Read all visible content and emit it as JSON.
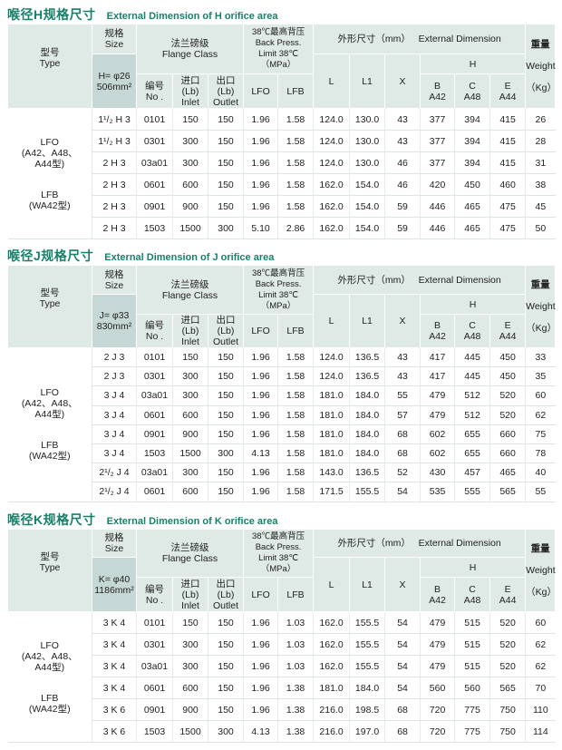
{
  "header_labels": {
    "type_cn": "型号",
    "type_en": "Type",
    "size_cn": "规格",
    "size_en": "Size",
    "flange_cn": "法兰磅级",
    "flange_en": "Flange  Class",
    "bp_cn": "38℃最高背压",
    "bp_en1": "Back Press.",
    "bp_en2": "Limit 38℃",
    "bp_unit": "（MPa）",
    "ext_dim": "外形尺寸（mm）   External Dimension",
    "weight_cn": "重量",
    "weight_en": "Weight",
    "weight_unit": "（Kg）",
    "no_cn": "编号",
    "no_en": "No .",
    "inlet_cn": "进口(Lb)",
    "inlet_en": "Inlet",
    "outlet_cn": "出口(Lb)",
    "outlet_en": "Outlet",
    "lfo": "LFO",
    "lfb": "LFB",
    "L": "L",
    "L1": "L1",
    "X": "X",
    "H": "H",
    "B": "B",
    "B2": "A42",
    "C": "C",
    "C2": "A48",
    "E": "E",
    "E2": "A44"
  },
  "type_text": {
    "lfo": "LFO",
    "lfo_sub": "(A42、A48、",
    "lfo_sub2": "A44型)",
    "lfb": "LFB",
    "lfb_sub": "(WA42型)"
  },
  "colors": {
    "title": "#17806a",
    "header_bg": "#dfe9e6",
    "size_bg": "#c6d8d5"
  },
  "sections": [
    {
      "title_cn": "喉径H规格尺寸",
      "title_en": "External Dimension of H orifice area",
      "size_value1": "H= φ26",
      "size_value2": "506mm²",
      "rows": [
        [
          "1¹/₂ H 3",
          "0101",
          "150",
          "150",
          "1.96",
          "1.58",
          "124.0",
          "130.0",
          "43",
          "377",
          "394",
          "415",
          "26"
        ],
        [
          "1¹/₂ H 3",
          "0301",
          "300",
          "150",
          "1.96",
          "1.58",
          "124.0",
          "130.0",
          "43",
          "377",
          "394",
          "415",
          "28"
        ],
        [
          "2 H 3",
          "03a01",
          "300",
          "150",
          "1.96",
          "1.58",
          "124.0",
          "130.0",
          "46",
          "377",
          "394",
          "415",
          "31"
        ],
        [
          "2 H 3",
          "0601",
          "600",
          "150",
          "1.96",
          "1.58",
          "162.0",
          "154.0",
          "46",
          "420",
          "450",
          "460",
          "38"
        ],
        [
          "2 H 3",
          "0901",
          "900",
          "150",
          "1.96",
          "1.58",
          "162.0",
          "154.0",
          "59",
          "446",
          "465",
          "475",
          "45"
        ],
        [
          "2 H 3",
          "1503",
          "1500",
          "300",
          "5.10",
          "2.86",
          "162.0",
          "154.0",
          "59",
          "446",
          "465",
          "475",
          "50"
        ]
      ]
    },
    {
      "title_cn": "喉径J规格尺寸",
      "title_en": "External Dimension of J orifice area",
      "size_value1": "J= φ33",
      "size_value2": "830mm²",
      "rows": [
        [
          "2 J 3",
          "0101",
          "150",
          "150",
          "1.96",
          "1.58",
          "124.0",
          "136.5",
          "43",
          "417",
          "445",
          "450",
          "33"
        ],
        [
          "2 J 3",
          "0301",
          "300",
          "150",
          "1.96",
          "1.58",
          "124.0",
          "136.5",
          "43",
          "417",
          "445",
          "450",
          "35"
        ],
        [
          "3 J 4",
          "03a01",
          "300",
          "150",
          "1.96",
          "1.58",
          "181.0",
          "184.0",
          "55",
          "479",
          "512",
          "520",
          "60"
        ],
        [
          "3 J 4",
          "0601",
          "600",
          "150",
          "1.96",
          "1.58",
          "181.0",
          "184.0",
          "57",
          "479",
          "512",
          "520",
          "62"
        ],
        [
          "3 J 4",
          "0901",
          "900",
          "150",
          "1.96",
          "1.58",
          "181.0",
          "184.0",
          "68",
          "602",
          "655",
          "660",
          "75"
        ],
        [
          "3 J 4",
          "1503",
          "1500",
          "300",
          "4.13",
          "1.58",
          "181.0",
          "184.0",
          "68",
          "602",
          "655",
          "660",
          "78"
        ],
        [
          "2¹/₂ J 4",
          "03a01",
          "300",
          "150",
          "1.96",
          "1.58",
          "143.0",
          "136.5",
          "52",
          "430",
          "457",
          "465",
          "40"
        ],
        [
          "2¹/₂ J 4",
          "0601",
          "600",
          "150",
          "1.96",
          "1.58",
          "171.5",
          "155.5",
          "54",
          "535",
          "555",
          "565",
          "55"
        ]
      ]
    },
    {
      "title_cn": "喉径K规格尺寸",
      "title_en": "External Dimension of K orifice area",
      "size_value1": "K= φ40",
      "size_value2": "1186mm²",
      "rows": [
        [
          "3 K 4",
          "0101",
          "150",
          "150",
          "1.96",
          "1.03",
          "162.0",
          "155.5",
          "54",
          "479",
          "515",
          "520",
          "60"
        ],
        [
          "3 K 4",
          "0301",
          "300",
          "150",
          "1.96",
          "1.03",
          "162.0",
          "155.5",
          "54",
          "479",
          "515",
          "520",
          "62"
        ],
        [
          "3 K 4",
          "03a01",
          "300",
          "150",
          "1.96",
          "1.03",
          "162.0",
          "155.5",
          "54",
          "479",
          "515",
          "520",
          "62"
        ],
        [
          "3 K 4",
          "0601",
          "600",
          "150",
          "1.96",
          "1.38",
          "181.0",
          "184.0",
          "54",
          "560",
          "560",
          "565",
          "70"
        ],
        [
          "3 K 6",
          "0901",
          "900",
          "150",
          "1.96",
          "1.38",
          "216.0",
          "198.5",
          "68",
          "720",
          "775",
          "750",
          "110"
        ],
        [
          "3 K 6",
          "1503",
          "1500",
          "300",
          "4.13",
          "1.38",
          "216.0",
          "197.0",
          "68",
          "720",
          "775",
          "750",
          "114"
        ]
      ]
    }
  ]
}
